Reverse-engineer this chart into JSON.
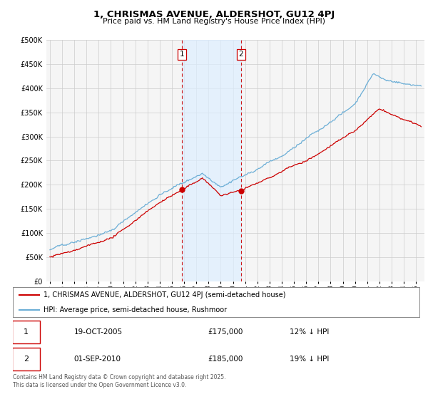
{
  "title": "1, CHRISMAS AVENUE, ALDERSHOT, GU12 4PJ",
  "subtitle": "Price paid vs. HM Land Registry's House Price Index (HPI)",
  "legend_line1": "1, CHRISMAS AVENUE, ALDERSHOT, GU12 4PJ (semi-detached house)",
  "legend_line2": "HPI: Average price, semi-detached house, Rushmoor",
  "footer": "Contains HM Land Registry data © Crown copyright and database right 2025.\nThis data is licensed under the Open Government Licence v3.0.",
  "sale1_label": "1",
  "sale1_date": "19-OCT-2005",
  "sale1_price": "£175,000",
  "sale1_hpi": "12% ↓ HPI",
  "sale1_year": 2005.8,
  "sale1_value": 175000,
  "sale2_label": "2",
  "sale2_date": "01-SEP-2010",
  "sale2_price": "£185,000",
  "sale2_hpi": "19% ↓ HPI",
  "sale2_year": 2010.67,
  "sale2_value": 185000,
  "hpi_color": "#6baed6",
  "price_color": "#cc0000",
  "vline_color": "#cc0000",
  "highlight_color": "#ddeeff",
  "ylim": [
    0,
    500000
  ],
  "yticks": [
    0,
    50000,
    100000,
    150000,
    200000,
    250000,
    300000,
    350000,
    400000,
    450000,
    500000
  ],
  "xlabel_years": [
    1995,
    1996,
    1997,
    1998,
    1999,
    2000,
    2001,
    2002,
    2003,
    2004,
    2005,
    2006,
    2007,
    2008,
    2009,
    2010,
    2011,
    2012,
    2013,
    2014,
    2015,
    2016,
    2017,
    2018,
    2019,
    2020,
    2021,
    2022,
    2023,
    2024,
    2025
  ],
  "background_color": "#ffffff",
  "plot_bg_color": "#f5f5f5",
  "grid_color": "#cccccc"
}
